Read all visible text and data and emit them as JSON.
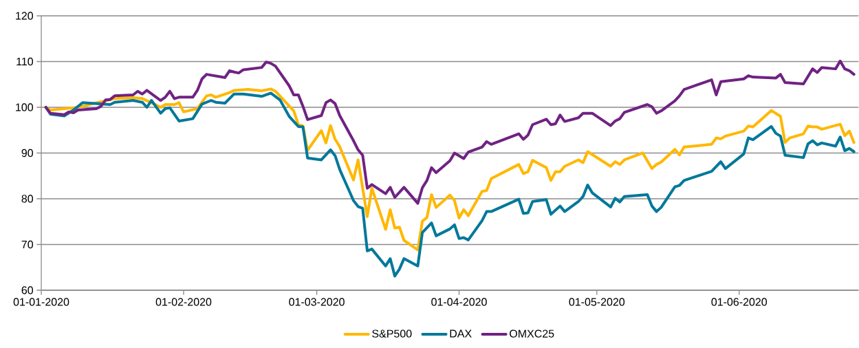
{
  "chart_data": {
    "type": "line",
    "xlim": [
      "2020-01-01",
      "2020-06-27"
    ],
    "xticks": [
      {
        "value": "2020-01-01",
        "label": "01-01-2020"
      },
      {
        "value": "2020-02-01",
        "label": "01-02-2020"
      },
      {
        "value": "2020-03-01",
        "label": "01-03-2020"
      },
      {
        "value": "2020-04-01",
        "label": "01-04-2020"
      },
      {
        "value": "2020-05-01",
        "label": "01-05-2020"
      },
      {
        "value": "2020-06-01",
        "label": "01-06-2020"
      }
    ],
    "ylim": [
      60,
      120
    ],
    "yticks": [
      60,
      70,
      80,
      90,
      100,
      110,
      120
    ],
    "grid": "y",
    "legend": "bottom",
    "series": [
      {
        "name": "S&P500",
        "color": "#ffb800",
        "x": [
          "2020-01-02",
          "2020-01-03",
          "2020-01-06",
          "2020-01-08",
          "2020-01-10",
          "2020-01-13",
          "2020-01-15",
          "2020-01-17",
          "2020-01-21",
          "2020-01-23",
          "2020-01-25",
          "2020-01-27",
          "2020-01-28",
          "2020-01-30",
          "2020-01-31",
          "2020-02-01",
          "2020-02-04",
          "2020-02-06",
          "2020-02-07",
          "2020-02-08",
          "2020-02-11",
          "2020-02-12",
          "2020-02-15",
          "2020-02-18",
          "2020-02-20",
          "2020-02-21",
          "2020-02-25",
          "2020-02-26",
          "2020-02-27",
          "2020-02-28",
          "2020-03-02",
          "2020-03-03",
          "2020-03-04",
          "2020-03-05",
          "2020-03-06",
          "2020-03-09",
          "2020-03-10",
          "2020-03-12",
          "2020-03-13",
          "2020-03-16",
          "2020-03-17",
          "2020-03-18",
          "2020-03-19",
          "2020-03-20",
          "2020-03-23",
          "2020-03-24",
          "2020-03-25",
          "2020-03-26",
          "2020-03-27",
          "2020-03-30",
          "2020-03-31",
          "2020-04-01",
          "2020-04-02",
          "2020-04-03",
          "2020-04-06",
          "2020-04-07",
          "2020-04-08",
          "2020-04-14",
          "2020-04-15",
          "2020-04-16",
          "2020-04-17",
          "2020-04-20",
          "2020-04-21",
          "2020-04-22",
          "2020-04-23",
          "2020-04-24",
          "2020-04-27",
          "2020-04-28",
          "2020-04-29",
          "2020-05-04",
          "2020-05-05",
          "2020-05-06",
          "2020-05-07",
          "2020-05-11",
          "2020-05-13",
          "2020-05-14",
          "2020-05-15",
          "2020-05-18",
          "2020-05-19",
          "2020-05-20",
          "2020-05-26",
          "2020-05-27",
          "2020-05-28",
          "2020-05-29",
          "2020-06-02",
          "2020-06-03",
          "2020-06-04",
          "2020-06-08",
          "2020-06-10",
          "2020-06-11",
          "2020-06-12",
          "2020-06-15",
          "2020-06-16",
          "2020-06-17",
          "2020-06-18",
          "2020-06-19",
          "2020-06-23",
          "2020-06-24",
          "2020-06-25",
          "2020-06-26"
        ],
        "values": [
          100,
          99.4,
          99.7,
          99.9,
          100.2,
          101.0,
          101.4,
          101.9,
          102.1,
          101.9,
          101.0,
          100,
          100.6,
          100.6,
          101.0,
          99.0,
          99.7,
          102.5,
          102.7,
          102.2,
          103.2,
          103.7,
          103.9,
          103.6,
          104.0,
          103.5,
          99.2,
          96.2,
          95.9,
          90.6,
          94.9,
          92.2,
          96.0,
          93.0,
          91.4,
          84.1,
          88.5,
          76.1,
          82.3,
          73.3,
          77.6,
          73.6,
          73.8,
          70.9,
          68.8,
          75.1,
          75.9,
          80.9,
          78.1,
          80.8,
          79.6,
          75.8,
          77.6,
          76.3,
          81.6,
          81.8,
          84.4,
          87.5,
          85.5,
          85.9,
          88.4,
          86.8,
          84.0,
          85.9,
          85.9,
          87.1,
          88.5,
          87.9,
          90.3,
          87.1,
          88.1,
          87.5,
          88.5,
          90.0,
          86.6,
          87.5,
          88.0,
          90.8,
          89.6,
          91.3,
          91.9,
          93.3,
          93.1,
          93.7,
          94.8,
          95.9,
          95.7,
          99.3,
          98.0,
          92.3,
          93.3,
          94.2,
          95.9,
          95.7,
          95.7,
          95.2,
          96.3,
          93.8,
          94.8,
          92.3
        ]
      },
      {
        "name": "DAX",
        "color": "#00789a",
        "x": [
          "2020-01-02",
          "2020-01-03",
          "2020-01-06",
          "2020-01-08",
          "2020-01-10",
          "2020-01-16",
          "2020-01-17",
          "2020-01-21",
          "2020-01-23",
          "2020-01-24",
          "2020-01-25",
          "2020-01-27",
          "2020-01-28",
          "2020-01-29",
          "2020-01-31",
          "2020-02-03",
          "2020-02-05",
          "2020-02-07",
          "2020-02-08",
          "2020-02-10",
          "2020-02-12",
          "2020-02-14",
          "2020-02-18",
          "2020-02-20",
          "2020-02-22",
          "2020-02-24",
          "2020-02-26",
          "2020-02-27",
          "2020-02-28",
          "2020-03-02",
          "2020-03-04",
          "2020-03-05",
          "2020-03-06",
          "2020-03-09",
          "2020-03-10",
          "2020-03-11",
          "2020-03-12",
          "2020-03-13",
          "2020-03-16",
          "2020-03-17",
          "2020-03-18",
          "2020-03-19",
          "2020-03-20",
          "2020-03-23",
          "2020-03-24",
          "2020-03-26",
          "2020-03-27",
          "2020-03-30",
          "2020-03-31",
          "2020-04-01",
          "2020-04-02",
          "2020-04-03",
          "2020-04-06",
          "2020-04-07",
          "2020-04-08",
          "2020-04-14",
          "2020-04-15",
          "2020-04-16",
          "2020-04-17",
          "2020-04-20",
          "2020-04-21",
          "2020-04-23",
          "2020-04-24",
          "2020-04-27",
          "2020-04-28",
          "2020-04-29",
          "2020-04-30",
          "2020-05-04",
          "2020-05-05",
          "2020-05-06",
          "2020-05-07",
          "2020-05-12",
          "2020-05-13",
          "2020-05-14",
          "2020-05-15",
          "2020-05-18",
          "2020-05-19",
          "2020-05-20",
          "2020-05-26",
          "2020-05-28",
          "2020-05-29",
          "2020-06-02",
          "2020-06-03",
          "2020-06-04",
          "2020-06-08",
          "2020-06-09",
          "2020-06-10",
          "2020-06-11",
          "2020-06-15",
          "2020-06-16",
          "2020-06-17",
          "2020-06-18",
          "2020-06-19",
          "2020-06-22",
          "2020-06-23",
          "2020-06-24",
          "2020-06-25",
          "2020-06-26"
        ],
        "values": [
          100,
          98.5,
          98.1,
          99.4,
          101.0,
          100.6,
          101.1,
          101.5,
          101.1,
          100,
          101.5,
          98.7,
          99.7,
          99.9,
          97.0,
          97.5,
          100.7,
          101.5,
          101.1,
          100.9,
          102.9,
          102.9,
          102.4,
          103.1,
          101.6,
          98.0,
          95.8,
          95.7,
          88.9,
          88.5,
          90.7,
          89.4,
          86.4,
          79.6,
          78.3,
          77.9,
          68.6,
          69.0,
          65.3,
          66.9,
          63.1,
          64.6,
          66.9,
          65.3,
          72.6,
          74.7,
          71.9,
          73.4,
          74.3,
          71.3,
          71.5,
          71.0,
          75.2,
          77.2,
          77.2,
          79.9,
          76.8,
          76.9,
          79.4,
          79.8,
          76.6,
          78.4,
          77.2,
          79.4,
          80.5,
          83.0,
          81.3,
          78.2,
          80.1,
          79.3,
          80.5,
          80.9,
          78.4,
          77.2,
          78.1,
          82.6,
          82.9,
          84.0,
          86.0,
          88.1,
          86.6,
          89.8,
          93.3,
          92.9,
          95.8,
          94.3,
          93.7,
          89.5,
          89.0,
          92.0,
          92.7,
          91.8,
          92.2,
          91.5,
          93.5,
          90.5,
          91.0,
          90.3
        ]
      },
      {
        "name": "OMXC25",
        "color": "#702283",
        "x": [
          "2020-01-02",
          "2020-01-03",
          "2020-01-06",
          "2020-01-07",
          "2020-01-08",
          "2020-01-09",
          "2020-01-13",
          "2020-01-14",
          "2020-01-15",
          "2020-01-16",
          "2020-01-17",
          "2020-01-21",
          "2020-01-22",
          "2020-01-23",
          "2020-01-24",
          "2020-01-27",
          "2020-01-28",
          "2020-01-29",
          "2020-01-30",
          "2020-01-31",
          "2020-02-03",
          "2020-02-04",
          "2020-02-05",
          "2020-02-06",
          "2020-02-10",
          "2020-02-11",
          "2020-02-12",
          "2020-02-13",
          "2020-02-14",
          "2020-02-18",
          "2020-02-19",
          "2020-02-20",
          "2020-02-21",
          "2020-02-24",
          "2020-02-25",
          "2020-02-26",
          "2020-02-27",
          "2020-02-28",
          "2020-03-02",
          "2020-03-03",
          "2020-03-04",
          "2020-03-05",
          "2020-03-06",
          "2020-03-09",
          "2020-03-10",
          "2020-03-11",
          "2020-03-12",
          "2020-03-13",
          "2020-03-16",
          "2020-03-17",
          "2020-03-18",
          "2020-03-20",
          "2020-03-23",
          "2020-03-24",
          "2020-03-25",
          "2020-03-26",
          "2020-03-27",
          "2020-03-30",
          "2020-03-31",
          "2020-04-02",
          "2020-04-03",
          "2020-04-06",
          "2020-04-07",
          "2020-04-08",
          "2020-04-14",
          "2020-04-15",
          "2020-04-16",
          "2020-04-17",
          "2020-04-20",
          "2020-04-21",
          "2020-04-22",
          "2020-04-23",
          "2020-04-24",
          "2020-04-27",
          "2020-04-28",
          "2020-04-30",
          "2020-05-04",
          "2020-05-05",
          "2020-05-06",
          "2020-05-07",
          "2020-05-12",
          "2020-05-13",
          "2020-05-14",
          "2020-05-15",
          "2020-05-18",
          "2020-05-19",
          "2020-05-20",
          "2020-05-26",
          "2020-05-27",
          "2020-05-28",
          "2020-06-02",
          "2020-06-03",
          "2020-06-04",
          "2020-06-09",
          "2020-06-10",
          "2020-06-11",
          "2020-06-15",
          "2020-06-17",
          "2020-06-18",
          "2020-06-19",
          "2020-06-22",
          "2020-06-23",
          "2020-06-24",
          "2020-06-25",
          "2020-06-26"
        ],
        "values": [
          100,
          98.7,
          98.4,
          99.0,
          98.8,
          99.4,
          99.7,
          100.2,
          101.6,
          101.7,
          102.5,
          102.7,
          103.5,
          102.9,
          103.7,
          101.5,
          102.2,
          103.5,
          101.9,
          102.2,
          102.2,
          103.7,
          106.2,
          107.2,
          106.5,
          108.0,
          107.7,
          107.5,
          108.2,
          108.7,
          109.9,
          109.6,
          109.0,
          104.7,
          102.7,
          102.7,
          100.2,
          97.3,
          98.2,
          101.0,
          101.6,
          100.8,
          98.2,
          92.7,
          90.7,
          89.5,
          82.3,
          83.1,
          81.1,
          82.5,
          80.3,
          82.5,
          79.0,
          82.4,
          84.0,
          86.8,
          85.7,
          88.3,
          90.0,
          88.8,
          90.2,
          91.3,
          92.5,
          91.9,
          94.2,
          93.0,
          93.9,
          96.2,
          97.4,
          96.2,
          96.4,
          98.3,
          96.9,
          97.7,
          98.7,
          98.7,
          96.0,
          97.0,
          97.5,
          98.9,
          100.6,
          100.1,
          98.7,
          99.2,
          101.4,
          102.5,
          103.9,
          106.0,
          102.7,
          105.6,
          106.2,
          106.9,
          106.6,
          106.4,
          107.2,
          105.4,
          105.1,
          108.4,
          107.6,
          108.7,
          108.4,
          110.1,
          108.4,
          108.0,
          107.2
        ]
      }
    ]
  }
}
